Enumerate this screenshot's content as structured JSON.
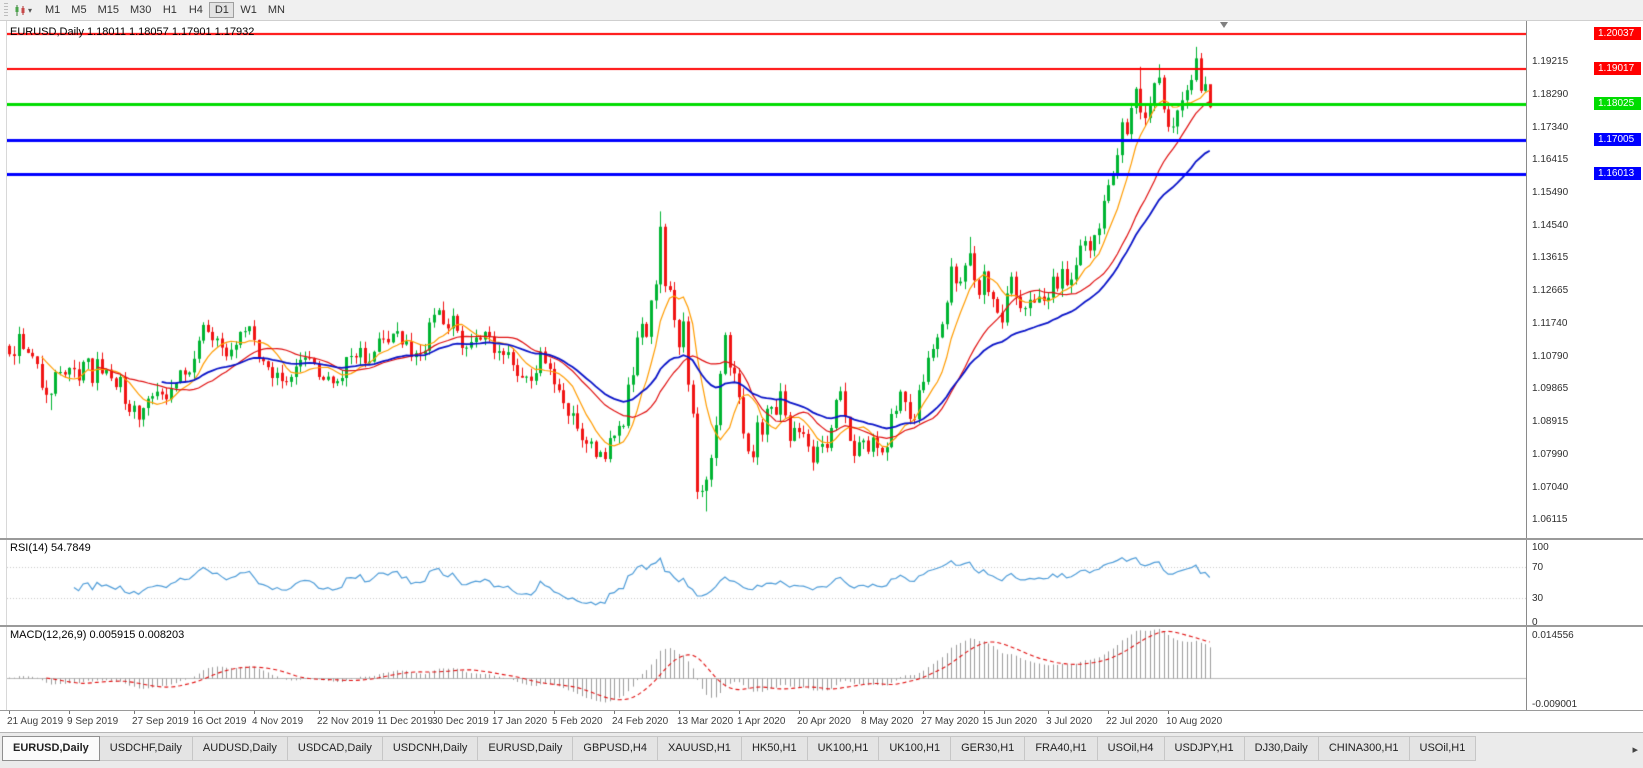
{
  "toolbar": {
    "timeframes": [
      "M1",
      "M5",
      "M15",
      "M30",
      "H1",
      "H4",
      "D1",
      "W1",
      "MN"
    ],
    "active_timeframe": "D1"
  },
  "chart": {
    "symbol": "EURUSD,Daily",
    "title_text": "EURUSD,Daily 1.18011 1.18057 1.17901 1.17932",
    "ohlc": {
      "open": "1.18011",
      "high": "1.18057",
      "low": "1.17901",
      "close": "1.17932"
    },
    "y_axis_labels": [
      "1.19215",
      "1.18290",
      "1.17340",
      "1.16415",
      "1.15490",
      "1.14540",
      "1.13615",
      "1.12665",
      "1.11740",
      "1.10790",
      "1.09865",
      "1.08915",
      "1.07990",
      "1.07040",
      "1.06115"
    ],
    "hlines": [
      {
        "price": 1.20037,
        "label": "1.20037",
        "color": "#FF0000",
        "width": 2
      },
      {
        "price": 1.19017,
        "label": "1.19017",
        "color": "#FF0000",
        "width": 2
      },
      {
        "price": 1.18025,
        "label": "1.18025",
        "color": "#00DC00",
        "width": 3
      },
      {
        "price": 1.17005,
        "label": "1.17005",
        "color": "#0000FF",
        "width": 3
      },
      {
        "price": 1.16013,
        "label": "1.16013",
        "color": "#0000FF",
        "width": 3
      }
    ]
  },
  "rsi": {
    "label": "RSI(14) 54.7849",
    "levels": [
      "100",
      "70",
      "30",
      "0"
    ]
  },
  "macd": {
    "label": "MACD(12,26,9) 0.005915 0.008203",
    "max_label": "0.014556",
    "min_label": "-0.009001"
  },
  "tabs": {
    "active_index": 0,
    "scroll_right_icon": "▸",
    "items": [
      "EURUSD,Daily",
      "USDCHF,Daily",
      "AUDUSD,Daily",
      "USDCAD,Daily",
      "USDCNH,Daily",
      "EURUSD,Daily",
      "GBPUSD,H4",
      "XAUUSD,H1",
      "HK50,H1",
      "UK100,H1",
      "UK100,H1",
      "GER30,H1",
      "FRA40,H1",
      "USOil,H4",
      "USDJPY,H1",
      "DJ30,Daily",
      "CHINA300,H1",
      "USOil,H1"
    ]
  },
  "chart_data": {
    "type": "candlestick",
    "symbol": "EURUSD",
    "timeframe": "Daily",
    "current_open": 1.18011,
    "current_high": 1.18057,
    "current_low": 1.17901,
    "current_close": 1.17932,
    "price_axis_min": 1.056,
    "price_axis_max": 1.204,
    "right_margin_slots": 68,
    "candle_up_color": "#00B432",
    "candle_down_color": "#F01414",
    "first_open": 1.111,
    "x_tick_labels": [
      "21 Aug 2019",
      "9 Sep 2019",
      "27 Sep 2019",
      "16 Oct 2019",
      "4 Nov 2019",
      "22 Nov 2019",
      "11 Dec 2019",
      "30 Dec 2019",
      "17 Jan 2020",
      "5 Feb 2020",
      "24 Feb 2020",
      "13 Mar 2020",
      "1 Apr 2020",
      "20 Apr 2020",
      "8 May 2020",
      "27 May 2020",
      "15 Jun 2020",
      "3 Jul 2020",
      "22 Jul 2020",
      "10 Aug 2020"
    ],
    "x_tick_indices": [
      0,
      13,
      27,
      40,
      53,
      67,
      80,
      92,
      105,
      118,
      131,
      145,
      158,
      171,
      185,
      198,
      211,
      225,
      238,
      251
    ],
    "closes": [
      1.1086,
      1.1081,
      1.1144,
      1.1101,
      1.109,
      1.108,
      1.1058,
      1.099,
      1.097,
      1.0973,
      1.1035,
      1.1035,
      1.1028,
      1.1047,
      1.1043,
      1.1011,
      1.1064,
      1.1074,
      1.1004,
      1.1072,
      1.1031,
      1.1042,
      1.1017,
      1.0992,
      1.1021,
      1.0944,
      1.0921,
      1.0939,
      1.0899,
      1.0932,
      1.0959,
      1.0966,
      1.0979,
      1.0971,
      1.0957,
      1.0988,
      1.1004,
      1.104,
      1.1028,
      1.1034,
      1.1073,
      1.1125,
      1.117,
      1.115,
      1.1126,
      1.1131,
      1.1105,
      1.108,
      1.1099,
      1.1113,
      1.115,
      1.1152,
      1.1166,
      1.1127,
      1.1074,
      1.1066,
      1.1049,
      1.1018,
      1.1033,
      1.1009,
      1.1007,
      1.1021,
      1.1051,
      1.107,
      1.1077,
      1.1074,
      1.1058,
      1.1021,
      1.1013,
      1.1022,
      1.1003,
      1.1009,
      1.1018,
      1.1078,
      1.1081,
      1.1077,
      1.1104,
      1.106,
      1.1065,
      1.1093,
      1.1131,
      1.113,
      1.112,
      1.1145,
      1.1152,
      1.1114,
      1.1123,
      1.1078,
      1.1089,
      1.1087,
      1.1096,
      1.1177,
      1.1199,
      1.1212,
      1.1172,
      1.116,
      1.1196,
      1.1153,
      1.1104,
      1.1105,
      1.1121,
      1.1134,
      1.1128,
      1.115,
      1.1136,
      1.109,
      1.1095,
      1.1084,
      1.1092,
      1.1055,
      1.1024,
      1.1019,
      1.1022,
      1.101,
      1.1032,
      1.1094,
      1.106,
      1.1044,
      1.1,
      1.0983,
      1.0946,
      1.091,
      1.0917,
      1.0873,
      1.084,
      1.083,
      1.0836,
      1.0792,
      1.0806,
      1.0786,
      1.0846,
      1.0853,
      1.0881,
      1.0881,
      1.0999,
      1.1026,
      1.1134,
      1.1173,
      1.1136,
      1.124,
      1.1286,
      1.1451,
      1.1281,
      1.127,
      1.1184,
      1.1106,
      1.118,
      1.0999,
      1.0916,
      1.0692,
      1.0695,
      1.0727,
      1.0789,
      1.0883,
      1.103,
      1.1141,
      1.1048,
      1.1031,
      1.0963,
      1.0859,
      1.0808,
      1.0791,
      1.0891,
      1.0856,
      1.093,
      1.0935,
      1.0913,
      1.098,
      1.0911,
      1.0838,
      1.0875,
      1.0863,
      1.0858,
      1.0822,
      1.0776,
      1.0821,
      1.0829,
      1.0818,
      1.0875,
      1.0955,
      1.098,
      1.0907,
      1.0838,
      1.0795,
      1.0834,
      1.0839,
      1.0807,
      1.0848,
      1.0818,
      1.0805,
      1.082,
      1.0915,
      1.0924,
      1.0979,
      1.0949,
      1.0901,
      1.09,
      1.0983,
      1.1007,
      1.1076,
      1.1101,
      1.1134,
      1.1172,
      1.1234,
      1.1337,
      1.1289,
      1.1294,
      1.134,
      1.1375,
      1.1298,
      1.1256,
      1.1323,
      1.1264,
      1.1244,
      1.1205,
      1.1177,
      1.126,
      1.1308,
      1.1251,
      1.1218,
      1.1218,
      1.1242,
      1.1234,
      1.1251,
      1.1239,
      1.1248,
      1.1308,
      1.1274,
      1.133,
      1.1284,
      1.13,
      1.1341,
      1.1397,
      1.141,
      1.1383,
      1.1427,
      1.1446,
      1.1525,
      1.157,
      1.1598,
      1.1656,
      1.175,
      1.1716,
      1.1791,
      1.1846,
      1.1778,
      1.1762,
      1.1803,
      1.1862,
      1.1878,
      1.1787,
      1.1737,
      1.1738,
      1.1784,
      1.1813,
      1.1842,
      1.1871,
      1.1933,
      1.184,
      1.1859,
      1.1793
    ],
    "wick_overrides": {
      "9": {
        "low": 1.0926
      },
      "29": {
        "low": 1.0879
      },
      "129": {
        "low": 1.0778
      },
      "141": {
        "high": 1.1495
      },
      "151": {
        "low": 1.0636
      },
      "208": {
        "high": 1.1422
      },
      "245": {
        "high": 1.1909
      },
      "249": {
        "high": 1.1916
      },
      "257": {
        "high": 1.1966
      },
      "260": {
        "high": 1.1806,
        "low": 1.179
      }
    },
    "moving_averages": [
      {
        "name": "ma-fast",
        "period": 8,
        "method": "sma",
        "color": "#FF9C00",
        "line_width": 1.2
      },
      {
        "name": "ma-medium",
        "period": 20,
        "method": "sma",
        "color": "#E01010",
        "line_width": 1.2
      },
      {
        "name": "ma-slow",
        "period": 34,
        "method": "ema",
        "color": "#0A14C8",
        "line_width": 1.8
      }
    ],
    "horizontal_lines": [
      {
        "price": 1.20037,
        "color": "#FF0000",
        "width": 2
      },
      {
        "price": 1.19017,
        "color": "#FF0000",
        "width": 2
      },
      {
        "price": 1.18025,
        "color": "#00DC00",
        "width": 3
      },
      {
        "price": 1.17005,
        "color": "#0000FF",
        "width": 3
      },
      {
        "price": 1.16013,
        "color": "#0000FF",
        "width": 3
      }
    ],
    "indicators": {
      "rsi": {
        "period": 14,
        "current_value": "54.7849",
        "dotted_levels": [
          70,
          30
        ],
        "range": [
          0,
          100
        ],
        "color": "#4E9CD8"
      },
      "macd": {
        "fast": 12,
        "slow": 26,
        "signal": 9,
        "current_main": "0.005915",
        "current_signal": "0.008203",
        "axis_max": 0.014556,
        "axis_min": -0.009001,
        "histogram_color": "#9C9C9C",
        "signal_color": "#E01010"
      }
    }
  }
}
